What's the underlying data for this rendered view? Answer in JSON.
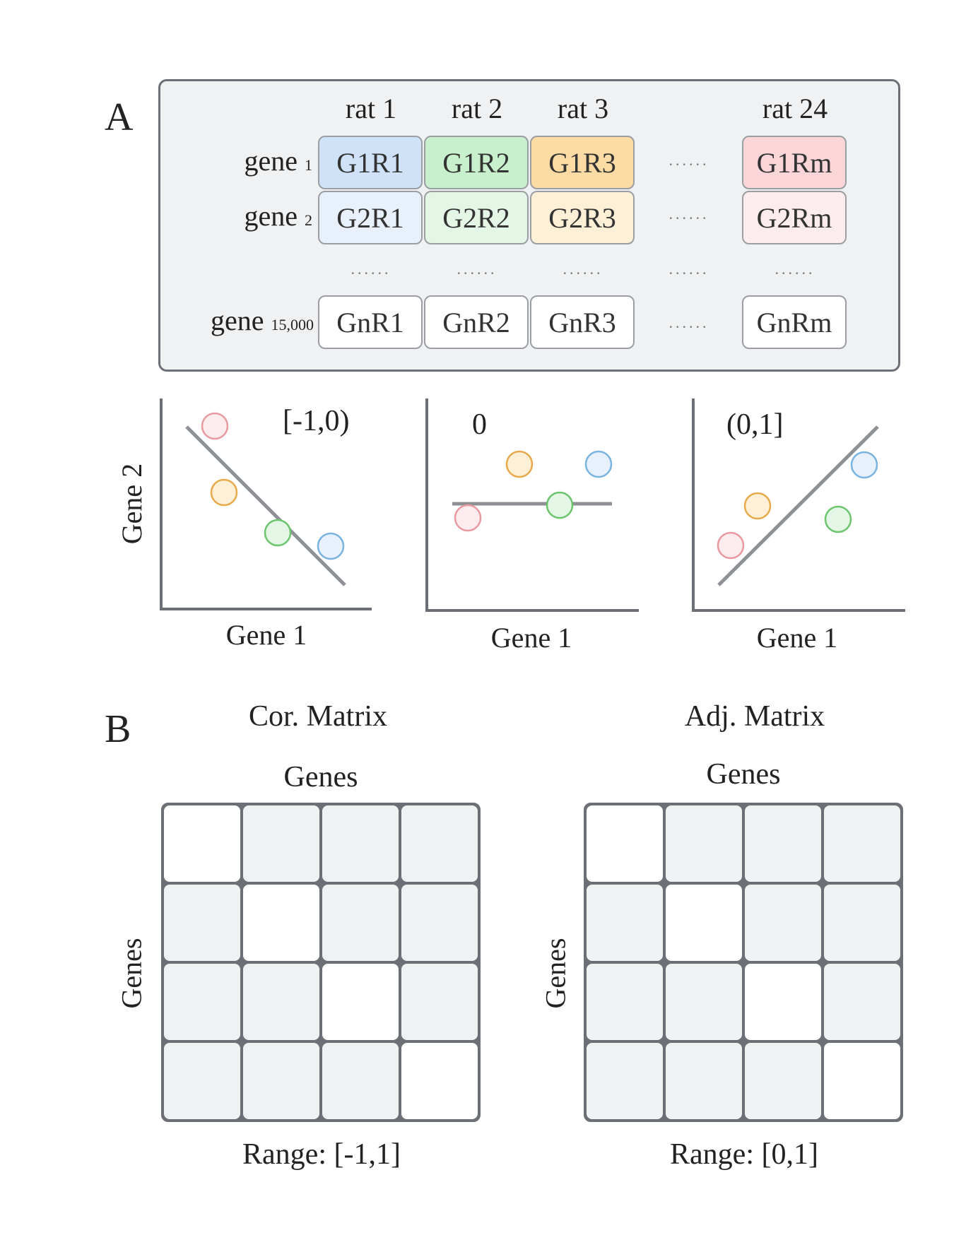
{
  "panel_a": {
    "letter": "A",
    "columns": [
      "rat 1",
      "rat 2",
      "rat 3",
      "rat 24"
    ],
    "rows": [
      {
        "label": "gene",
        "sub": "1",
        "cells": [
          "G1R1",
          "G1R2",
          "G1R3",
          "G1Rm"
        ]
      },
      {
        "label": "gene",
        "sub": "2",
        "cells": [
          "G2R1",
          "G2R2",
          "G2R3",
          "G2Rm"
        ]
      },
      {
        "label": "gene",
        "sub": "15,000",
        "cells": [
          "GnR1",
          "GnR2",
          "GnR3",
          "GnRm"
        ]
      }
    ],
    "ellipsis": "......",
    "colors": {
      "rat1_strong": "#cfe2f8",
      "rat1_light": "#e8f1fb",
      "rat2_strong": "#c8f0cc",
      "rat2_light": "#e4f7e6",
      "rat3_strong": "#fcdba4",
      "rat3_light": "#fdf0d6",
      "rat24_strong": "#fbd6d9",
      "rat24_light": "#fdeced"
    },
    "plots": [
      {
        "label": "[-1,0)",
        "xlabel": "Gene 1",
        "ylabel": "Gene 2"
      },
      {
        "label": "0",
        "xlabel": "Gene 1"
      },
      {
        "label": "(0,1]",
        "xlabel": "Gene 1"
      }
    ],
    "point_colors": {
      "red": "#e89aa0",
      "orange": "#e8a94a",
      "green": "#6cc46c",
      "blue": "#79b3e0"
    }
  },
  "panel_b": {
    "letter": "B",
    "cor": {
      "title": "Cor. Matrix",
      "col_label": "Genes",
      "row_label": "Genes",
      "range": "Range: [-1,1]"
    },
    "adj": {
      "title": "Adj. Matrix",
      "col_label": "Genes",
      "row_label": "Genes",
      "range": "Range: [0,1]"
    }
  }
}
